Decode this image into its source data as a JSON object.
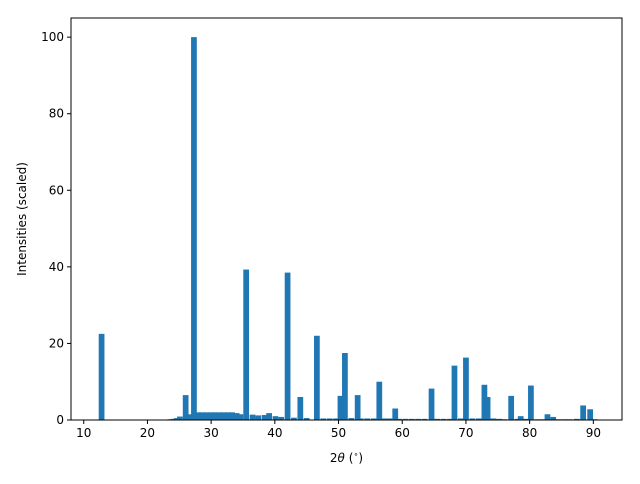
{
  "chart_data": {
    "type": "bar",
    "title": "",
    "xlabel": "2θ (°)",
    "xlabel_parts": {
      "prefix": "2",
      "symbol": "θ",
      "open": " (",
      "unit": "∘",
      "close": ")"
    },
    "ylabel": "Intensities (scaled)",
    "xlim": [
      8,
      94.5
    ],
    "ylim": [
      0,
      105
    ],
    "xticks": [
      10,
      20,
      30,
      40,
      50,
      60,
      70,
      80,
      90
    ],
    "xtick_labels": [
      "10",
      "20",
      "30",
      "40",
      "50",
      "60",
      "70",
      "80",
      "90"
    ],
    "yticks": [
      0,
      20,
      40,
      60,
      80,
      100
    ],
    "ytick_labels": [
      "0",
      "20",
      "40",
      "60",
      "80",
      "100"
    ],
    "grid": false,
    "legend": "none",
    "bar_color": "#1f77b4",
    "bar_width": 0.9,
    "x": [
      12.8,
      23.6,
      24.1,
      24.6,
      25.1,
      26.0,
      26.6,
      27.3,
      28.0,
      28.6,
      29.3,
      30.0,
      30.6,
      31.3,
      32.0,
      32.6,
      33.3,
      34.0,
      34.6,
      35.5,
      36.5,
      37.4,
      38.4,
      39.1,
      40.1,
      41.0,
      42.0,
      43.0,
      44.0,
      45.0,
      46.6,
      47.6,
      48.6,
      49.6,
      50.3,
      51.0,
      52.0,
      53.0,
      53.5,
      54.5,
      55.5,
      56.4,
      57.1,
      58.0,
      58.9,
      59.5,
      60.5,
      61.5,
      62.5,
      63.5,
      64.6,
      65.5,
      66.5,
      67.5,
      68.2,
      69.2,
      70.0,
      71.0,
      72.0,
      72.9,
      73.4,
      74.3,
      75.2,
      76.0,
      77.1,
      78.1,
      78.6,
      79.5,
      80.2,
      81.2,
      82.1,
      82.8,
      83.7,
      84.6,
      85.5,
      86.3,
      87.4,
      88.4,
      89.5,
      90.2
    ],
    "values": [
      22.5,
      0.2,
      0.3,
      0.5,
      0.9,
      6.5,
      1.5,
      100,
      2.0,
      2.0,
      2.0,
      2.0,
      2.0,
      2.0,
      2.0,
      2.0,
      2.0,
      1.8,
      1.5,
      39.3,
      1.4,
      1.2,
      1.3,
      1.8,
      1.0,
      0.8,
      38.5,
      0.6,
      6.0,
      0.5,
      22.0,
      0.4,
      0.4,
      0.4,
      6.3,
      17.5,
      0.5,
      6.5,
      0.4,
      0.4,
      0.4,
      10.0,
      0.4,
      0.4,
      3.0,
      0.3,
      0.3,
      0.3,
      0.3,
      0.3,
      8.2,
      0.3,
      0.3,
      0.3,
      14.2,
      0.4,
      16.3,
      0.4,
      0.4,
      9.2,
      6.0,
      0.4,
      0.3,
      0.2,
      6.3,
      0.3,
      1.0,
      0.3,
      9.0,
      0.2,
      0.2,
      1.5,
      0.8,
      0.2,
      0.2,
      0.2,
      0.3,
      3.8,
      2.8,
      0.2
    ]
  }
}
